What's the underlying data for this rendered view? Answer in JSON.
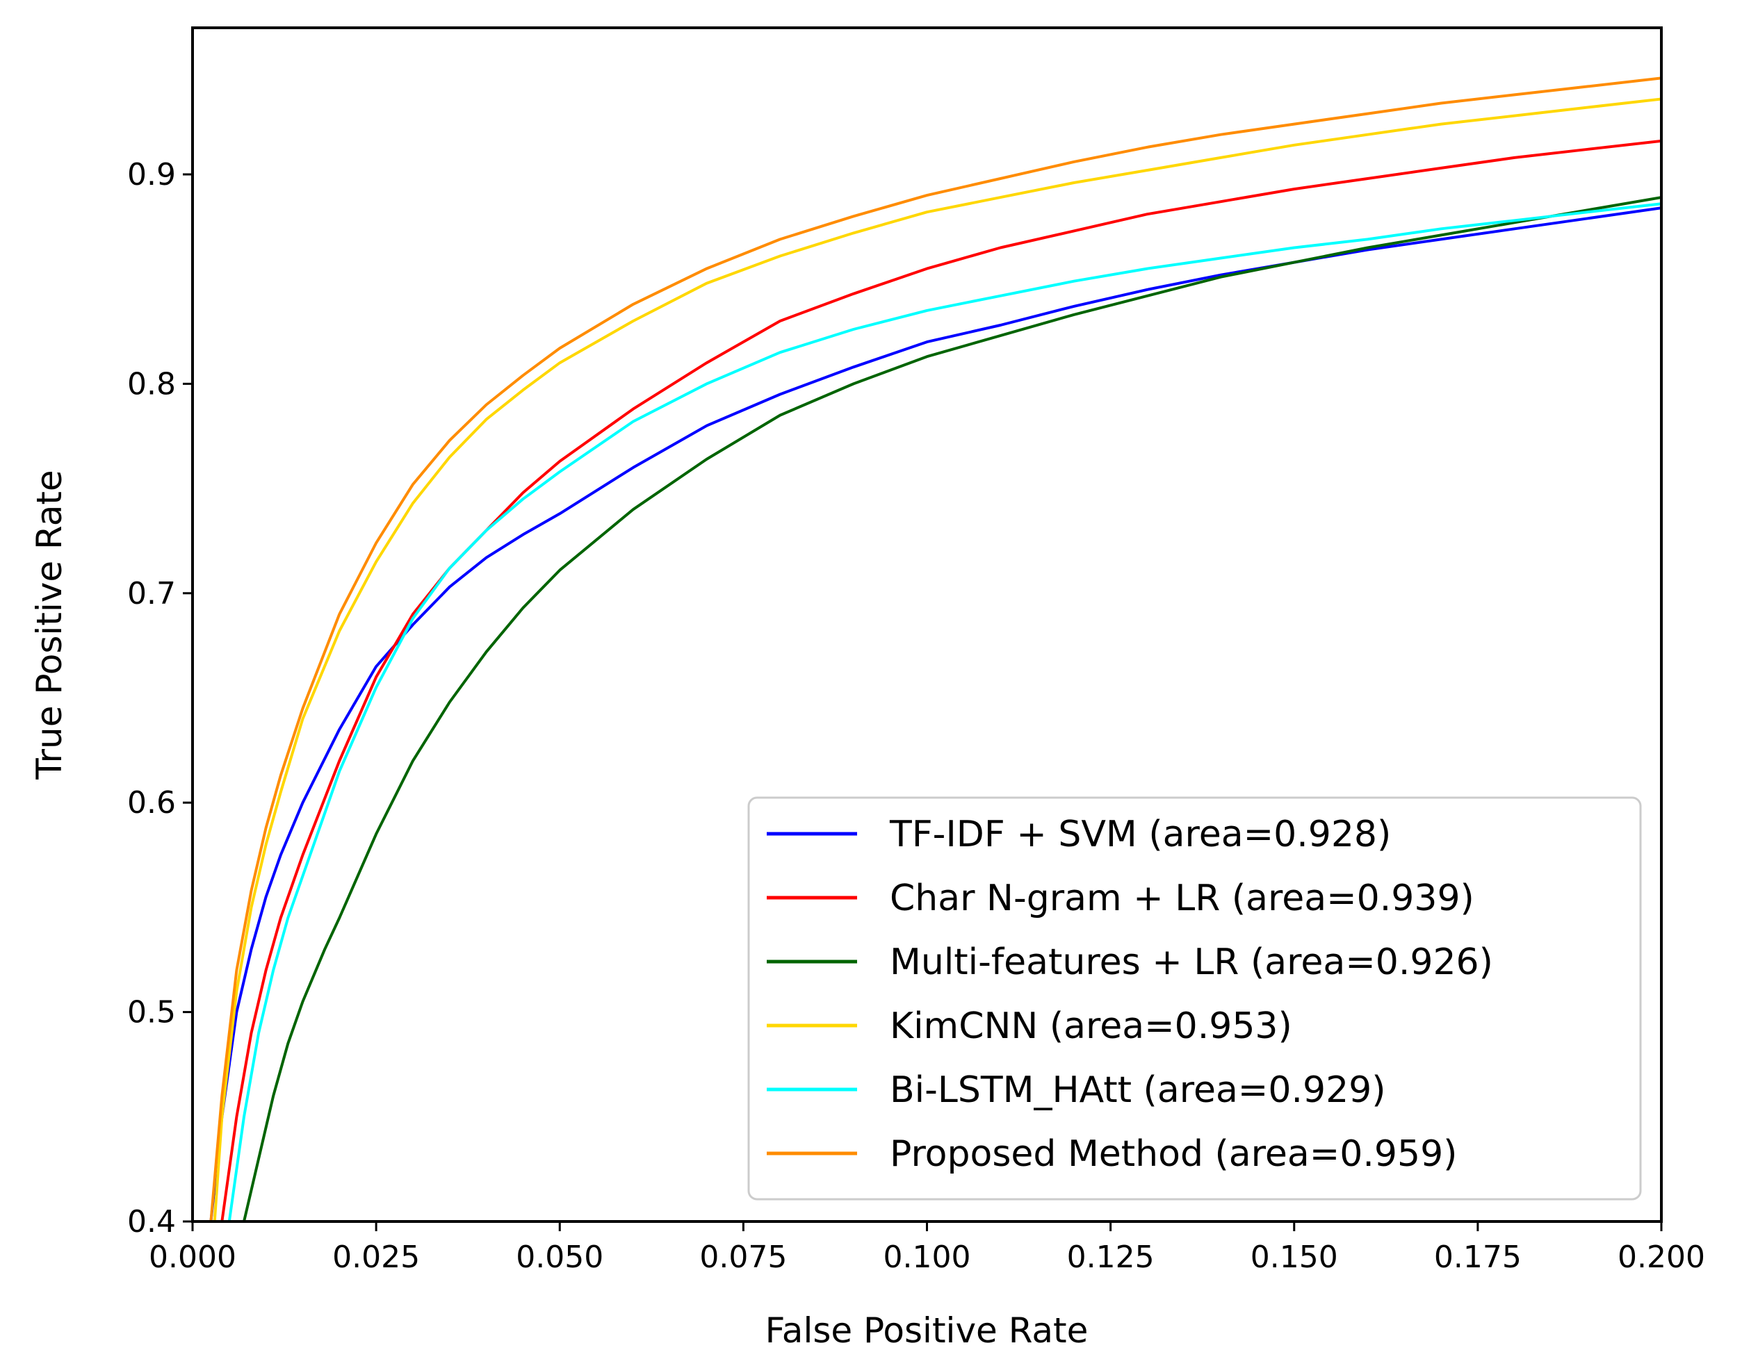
{
  "chart_data": {
    "type": "line",
    "title": "",
    "xlabel": "False Positive Rate",
    "ylabel": "True Positive Rate",
    "xlim": [
      0.0,
      0.2
    ],
    "ylim": [
      0.4,
      0.97
    ],
    "xticks": [
      "0.000",
      "0.025",
      "0.050",
      "0.075",
      "0.100",
      "0.125",
      "0.150",
      "0.175",
      "0.200"
    ],
    "yticks": [
      "0.4",
      "0.5",
      "0.6",
      "0.7",
      "0.8",
      "0.9"
    ],
    "xtick_values": [
      0.0,
      0.025,
      0.05,
      0.075,
      0.1,
      0.125,
      0.15,
      0.175,
      0.2
    ],
    "ytick_values": [
      0.4,
      0.5,
      0.6,
      0.7,
      0.8,
      0.9
    ],
    "grid": false,
    "legend_position": "bottom-right",
    "series": [
      {
        "name": "TF-IDF + SVM (area=0.928)",
        "color": "#0000ff",
        "x": [
          0.0025,
          0.004,
          0.006,
          0.008,
          0.01,
          0.012,
          0.015,
          0.02,
          0.025,
          0.03,
          0.035,
          0.04,
          0.045,
          0.05,
          0.06,
          0.07,
          0.08,
          0.09,
          0.1,
          0.11,
          0.12,
          0.13,
          0.14,
          0.15,
          0.16,
          0.17,
          0.18,
          0.19,
          0.2
        ],
        "y": [
          0.4,
          0.45,
          0.5,
          0.53,
          0.555,
          0.575,
          0.6,
          0.635,
          0.665,
          0.685,
          0.703,
          0.717,
          0.728,
          0.738,
          0.76,
          0.78,
          0.795,
          0.808,
          0.82,
          0.828,
          0.837,
          0.845,
          0.852,
          0.858,
          0.864,
          0.869,
          0.874,
          0.879,
          0.884
        ]
      },
      {
        "name": "Char N-gram + LR (area=0.939)",
        "color": "#ff0000",
        "x": [
          0.004,
          0.006,
          0.008,
          0.01,
          0.012,
          0.015,
          0.02,
          0.025,
          0.03,
          0.035,
          0.04,
          0.045,
          0.05,
          0.06,
          0.07,
          0.08,
          0.09,
          0.1,
          0.11,
          0.12,
          0.13,
          0.14,
          0.15,
          0.16,
          0.17,
          0.18,
          0.19,
          0.2
        ],
        "y": [
          0.4,
          0.45,
          0.49,
          0.52,
          0.545,
          0.575,
          0.62,
          0.66,
          0.69,
          0.712,
          0.73,
          0.748,
          0.763,
          0.788,
          0.81,
          0.83,
          0.843,
          0.855,
          0.865,
          0.873,
          0.881,
          0.887,
          0.893,
          0.898,
          0.903,
          0.908,
          0.912,
          0.916
        ]
      },
      {
        "name": "Multi-features + LR (area=0.926)",
        "color": "#006400",
        "x": [
          0.007,
          0.009,
          0.011,
          0.013,
          0.015,
          0.018,
          0.02,
          0.025,
          0.03,
          0.035,
          0.04,
          0.045,
          0.05,
          0.06,
          0.07,
          0.08,
          0.09,
          0.1,
          0.11,
          0.12,
          0.13,
          0.14,
          0.15,
          0.16,
          0.17,
          0.18,
          0.19,
          0.2
        ],
        "y": [
          0.4,
          0.43,
          0.46,
          0.485,
          0.505,
          0.53,
          0.545,
          0.585,
          0.62,
          0.648,
          0.672,
          0.693,
          0.711,
          0.74,
          0.764,
          0.785,
          0.8,
          0.813,
          0.823,
          0.833,
          0.842,
          0.851,
          0.858,
          0.865,
          0.871,
          0.877,
          0.883,
          0.889
        ]
      },
      {
        "name": "KimCNN (area=0.953)",
        "color": "#ffd700",
        "x": [
          0.003,
          0.004,
          0.006,
          0.008,
          0.01,
          0.012,
          0.015,
          0.02,
          0.025,
          0.03,
          0.035,
          0.04,
          0.045,
          0.05,
          0.06,
          0.07,
          0.08,
          0.09,
          0.1,
          0.11,
          0.12,
          0.13,
          0.14,
          0.15,
          0.16,
          0.17,
          0.18,
          0.19,
          0.2
        ],
        "y": [
          0.4,
          0.45,
          0.51,
          0.55,
          0.58,
          0.605,
          0.64,
          0.682,
          0.715,
          0.743,
          0.765,
          0.783,
          0.797,
          0.81,
          0.83,
          0.848,
          0.861,
          0.872,
          0.882,
          0.889,
          0.896,
          0.902,
          0.908,
          0.914,
          0.919,
          0.924,
          0.928,
          0.932,
          0.936
        ]
      },
      {
        "name": "Bi-LSTM_HAtt (area=0.929)",
        "color": "#00ffff",
        "x": [
          0.005,
          0.007,
          0.009,
          0.011,
          0.013,
          0.015,
          0.018,
          0.02,
          0.025,
          0.03,
          0.035,
          0.04,
          0.045,
          0.05,
          0.06,
          0.07,
          0.08,
          0.09,
          0.1,
          0.11,
          0.12,
          0.13,
          0.14,
          0.15,
          0.16,
          0.17,
          0.18,
          0.19,
          0.2
        ],
        "y": [
          0.4,
          0.45,
          0.49,
          0.52,
          0.545,
          0.565,
          0.595,
          0.615,
          0.655,
          0.688,
          0.712,
          0.73,
          0.745,
          0.758,
          0.782,
          0.8,
          0.815,
          0.826,
          0.835,
          0.842,
          0.849,
          0.855,
          0.86,
          0.865,
          0.869,
          0.874,
          0.878,
          0.882,
          0.886
        ]
      },
      {
        "name": "Proposed Method (area=0.959)",
        "color": "#ff8c00",
        "x": [
          0.0025,
          0.004,
          0.006,
          0.008,
          0.01,
          0.012,
          0.015,
          0.02,
          0.025,
          0.03,
          0.035,
          0.04,
          0.045,
          0.05,
          0.06,
          0.07,
          0.08,
          0.09,
          0.1,
          0.11,
          0.12,
          0.13,
          0.14,
          0.15,
          0.16,
          0.17,
          0.18,
          0.19,
          0.2
        ],
        "y": [
          0.4,
          0.46,
          0.52,
          0.558,
          0.588,
          0.613,
          0.645,
          0.69,
          0.724,
          0.752,
          0.773,
          0.79,
          0.804,
          0.817,
          0.838,
          0.855,
          0.869,
          0.88,
          0.89,
          0.898,
          0.906,
          0.913,
          0.919,
          0.924,
          0.929,
          0.934,
          0.938,
          0.942,
          0.946
        ]
      }
    ]
  }
}
